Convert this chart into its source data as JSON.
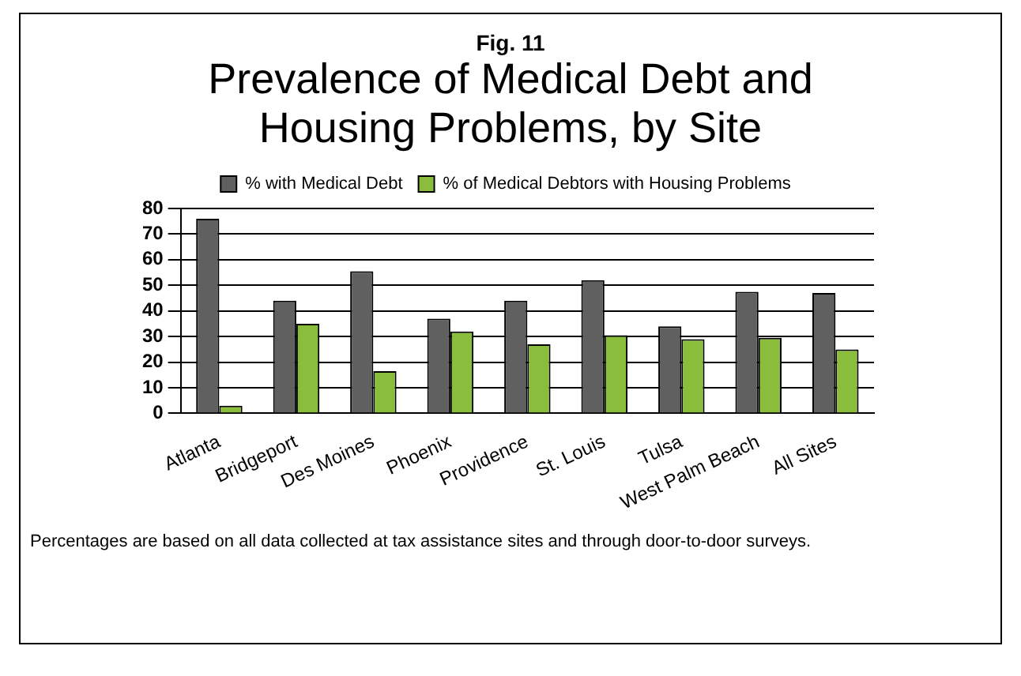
{
  "chart_data": {
    "type": "bar",
    "title": "Prevalence of Medical Debt and Housing Problems, by Site",
    "subtitle": "Fig. 11",
    "categories": [
      "Atlanta",
      "Bridgeport",
      "Des Moines",
      "Phoenix",
      "Providence",
      "St. Louis",
      "Tulsa",
      "West Palm Beach",
      "All Sites"
    ],
    "series": [
      {
        "name": "% with Medical Debt",
        "color": "#606060",
        "values": [
          76,
          44,
          55.5,
          37,
          44,
          52,
          34,
          47.5,
          47
        ]
      },
      {
        "name": "% of Medical Debtors with Housing Problems",
        "color": "#8abd3c",
        "values": [
          3,
          35,
          16.5,
          32,
          27,
          30.5,
          29,
          29.5,
          25
        ]
      }
    ],
    "ylim": [
      0,
      80
    ],
    "yticks": [
      0,
      10,
      20,
      30,
      40,
      50,
      60,
      70,
      80
    ],
    "grid": "y",
    "legend": "top",
    "annotations": [
      "Percentages are based on all data collected at tax assistance sites and through door-to-door surveys."
    ]
  }
}
